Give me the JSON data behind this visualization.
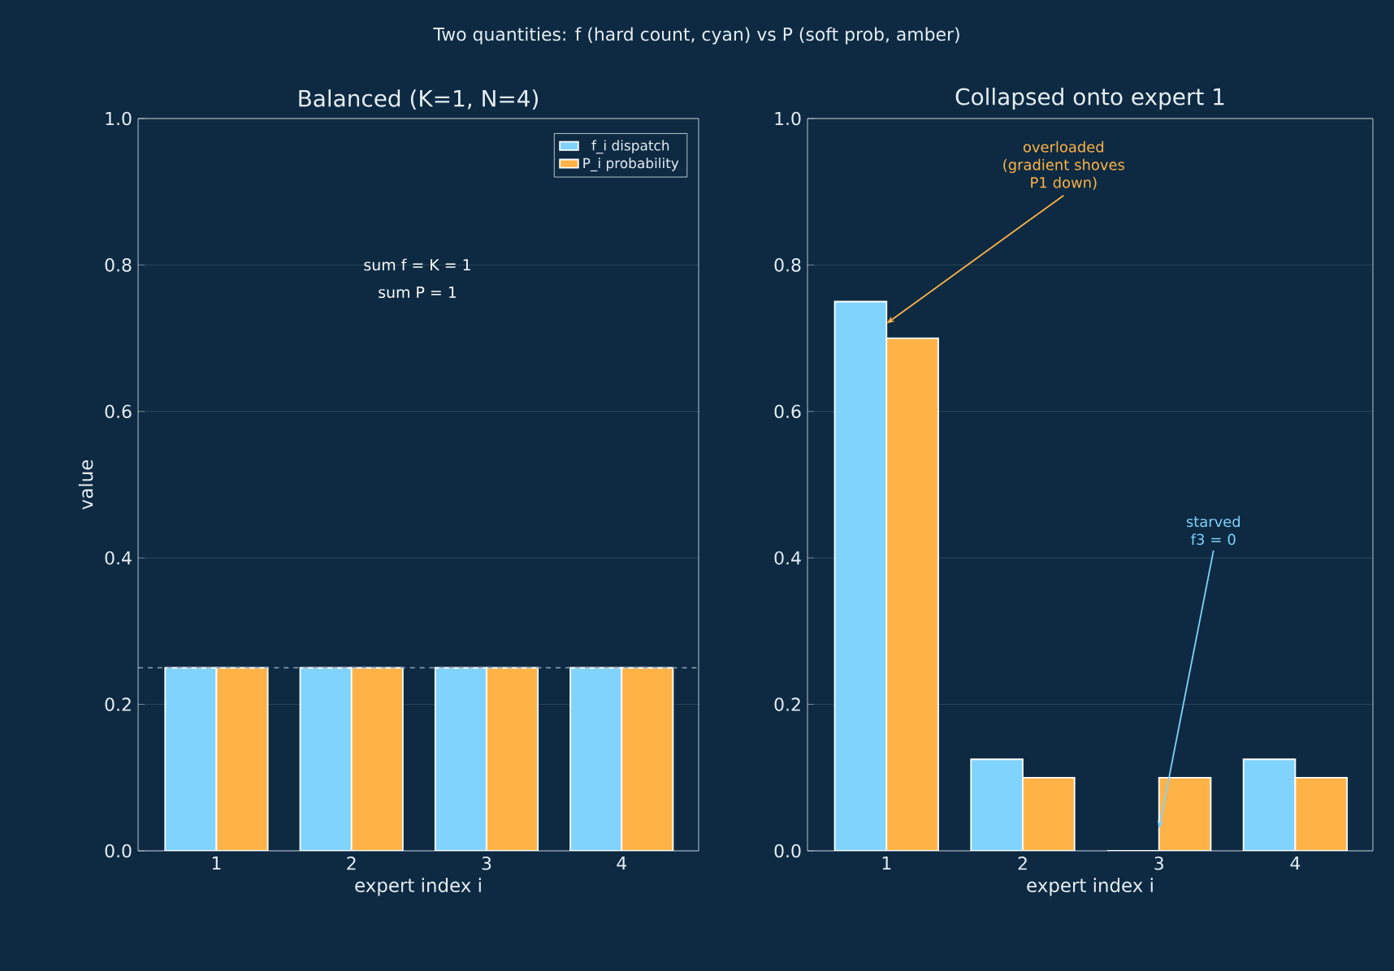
{
  "chart_data": [
    {
      "type": "bar",
      "title": "Balanced (K=1, N=4)",
      "xlabel": "expert index i",
      "ylabel": "value",
      "categories": [
        "1",
        "2",
        "3",
        "4"
      ],
      "series": [
        {
          "name": "f_i dispatch",
          "color": "#7fd3fd",
          "values": [
            0.25,
            0.25,
            0.25,
            0.25
          ]
        },
        {
          "name": "P_i probability",
          "color": "#ffb347",
          "values": [
            0.25,
            0.25,
            0.25,
            0.25
          ]
        }
      ],
      "ylim": [
        0,
        1
      ],
      "yticks": [
        {
          "value": 0,
          "label": "0.0"
        },
        {
          "value": 0.2,
          "label": "0.2"
        },
        {
          "value": 0.4,
          "label": "0.4"
        },
        {
          "value": 0.6,
          "label": "0.6"
        },
        {
          "value": 0.8,
          "label": "0.8"
        },
        {
          "value": 1,
          "label": "1.0"
        }
      ],
      "grid": "y",
      "legend": "top right",
      "ref_lines": [
        {
          "axis": "y",
          "value": 0.25,
          "color": "#8fa4b8",
          "line_style": "dashed"
        }
      ],
      "annotations": [
        "Two quantities: f (hard count, cyan) vs P (soft prob, amber)",
        "sum f = K = 1",
        "sum P = 1"
      ]
    },
    {
      "type": "bar",
      "title": "Collapsed onto expert 1",
      "xlabel": "expert index i",
      "categories": [
        "1",
        "2",
        "3",
        "4"
      ],
      "series": [
        {
          "color": "#7fd3fd",
          "values": [
            0.75,
            0.125,
            0,
            0.125
          ]
        },
        {
          "color": "#ffb347",
          "values": [
            0.7,
            0.1,
            0.1,
            0.1
          ]
        }
      ],
      "ylim": [
        0,
        1
      ],
      "yticks": [
        {
          "value": 0,
          "label": "0.0"
        },
        {
          "value": 0.2,
          "label": "0.2"
        },
        {
          "value": 0.4,
          "label": "0.4"
        },
        {
          "value": 0.6,
          "label": "0.6"
        },
        {
          "value": 0.8,
          "label": "0.8"
        },
        {
          "value": 1,
          "label": "1.0"
        }
      ],
      "grid": "y",
      "annotations": [
        {
          "text": "overloaded (gradient shoves P1 down)",
          "x": "1",
          "y": 0.72
        },
        {
          "text": "starved f3 = 0",
          "x": "3",
          "y": 0.03
        }
      ]
    }
  ]
}
